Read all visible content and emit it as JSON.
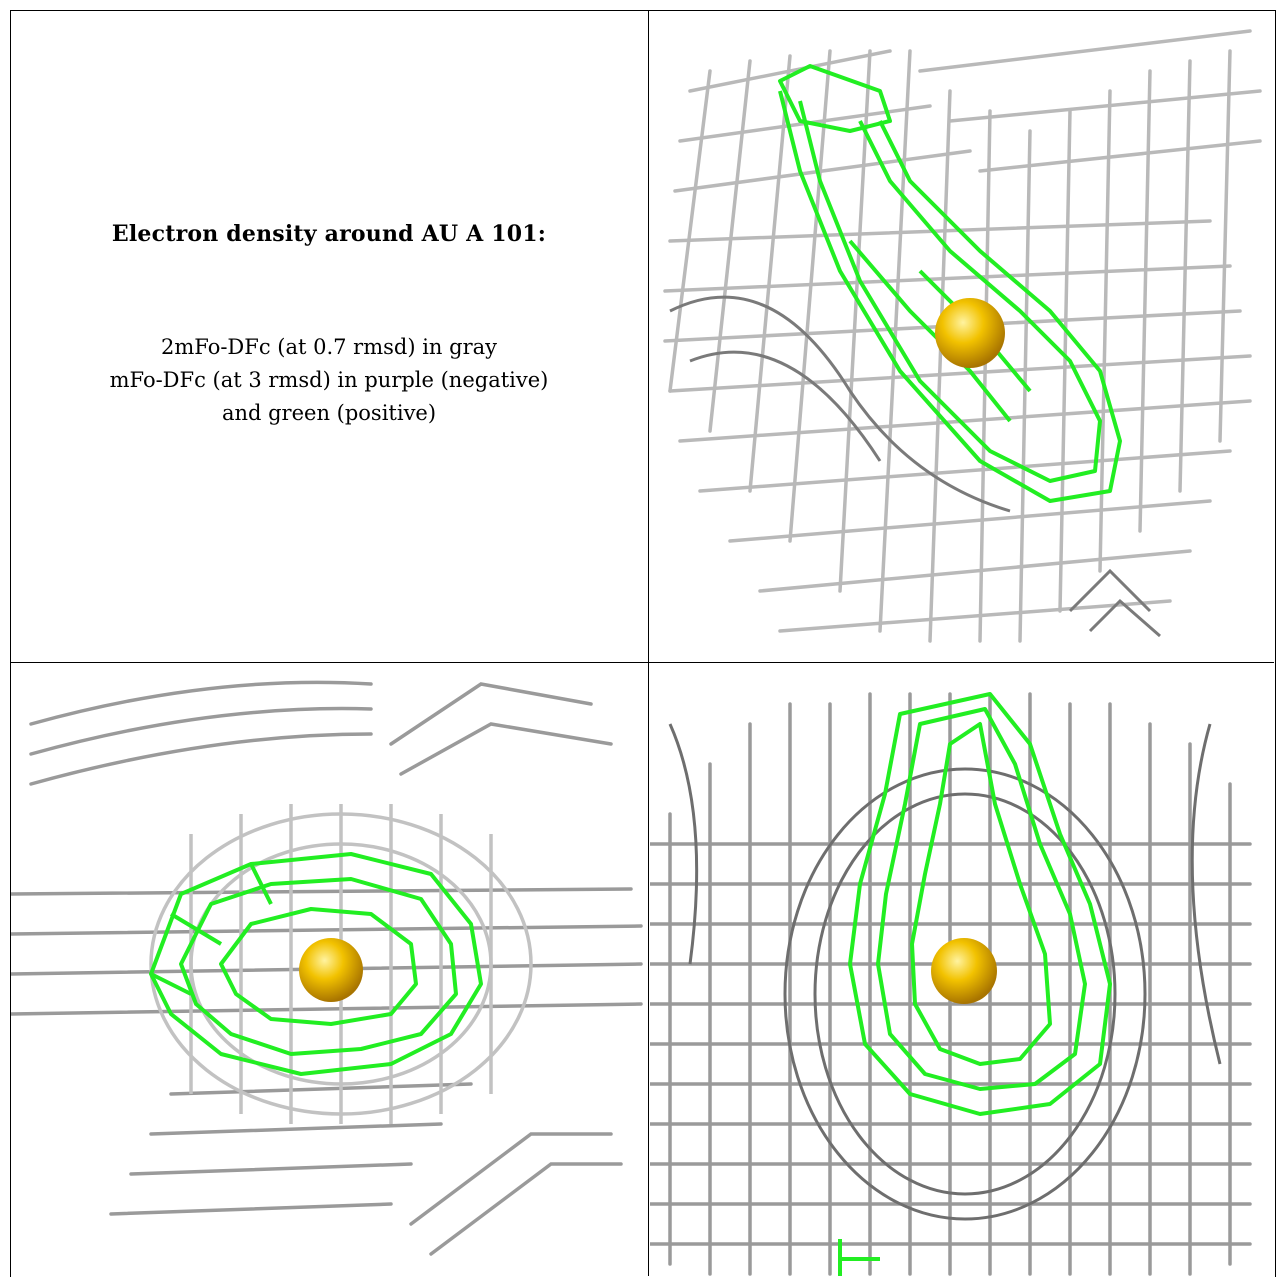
{
  "header": {
    "title": "Electron density around AU A 101:"
  },
  "legend": {
    "line1": "2mFo-DFc (at 0.7 rmsd) in gray",
    "line2": "mFo-DFc (at 3 rmsd) in purple (negative)",
    "line3": "and green (positive)"
  },
  "colors": {
    "map_2fofc": "#b4b4b4",
    "map_fofc_positive": "#22ee22",
    "map_fofc_negative": "#9b30ff",
    "atom_gold": "#f2b800"
  },
  "views": [
    {
      "atom": "AU",
      "mesh": "gray-and-green-density-mesh"
    },
    {
      "atom": "AU",
      "mesh": "gray-and-green-density-mesh"
    },
    {
      "atom": "AU",
      "mesh": "gray-and-green-density-mesh"
    }
  ]
}
